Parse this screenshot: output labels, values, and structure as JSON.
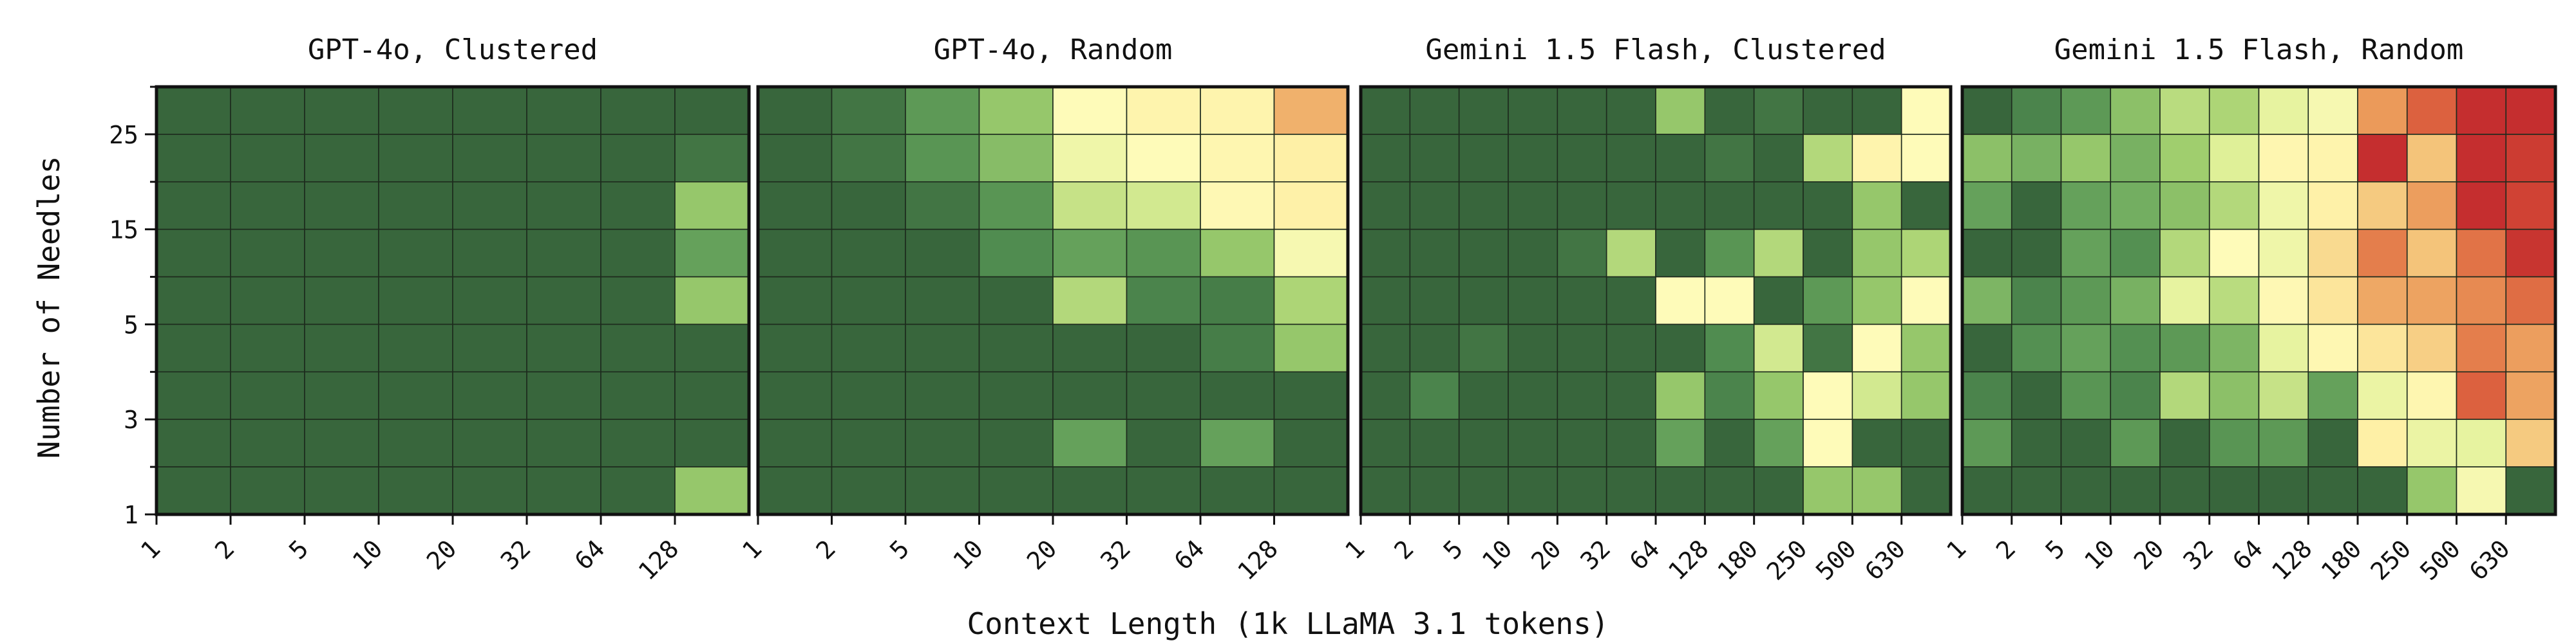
{
  "figure": {
    "xlabel": "Context Length (1k LLaMA 3.1 tokens)",
    "ylabel": "Number of Needles",
    "y_tick_labels": [
      "25",
      "15",
      "5",
      "3",
      "1"
    ]
  },
  "chart_data": [
    {
      "type": "heatmap",
      "title": "GPT-4o, Clustered",
      "x_tick_labels": [
        "1",
        "2",
        "5",
        "10",
        "20",
        "32",
        "64",
        "128"
      ],
      "value_range": [
        0,
        1
      ],
      "colormap": "RdYlGn",
      "values": [
        [
          1.0,
          1.0,
          1.0,
          1.0,
          1.0,
          1.0,
          1.0,
          1.0
        ],
        [
          1.0,
          1.0,
          1.0,
          1.0,
          1.0,
          1.0,
          1.0,
          0.98
        ],
        [
          1.0,
          1.0,
          1.0,
          1.0,
          1.0,
          1.0,
          1.0,
          0.8
        ],
        [
          1.0,
          1.0,
          1.0,
          1.0,
          1.0,
          1.0,
          1.0,
          0.9
        ],
        [
          1.0,
          1.0,
          1.0,
          1.0,
          1.0,
          1.0,
          1.0,
          0.8
        ],
        [
          1.0,
          1.0,
          1.0,
          1.0,
          1.0,
          1.0,
          1.0,
          1.0
        ],
        [
          1.0,
          1.0,
          1.0,
          1.0,
          1.0,
          1.0,
          1.0,
          1.0
        ],
        [
          1.0,
          1.0,
          1.0,
          1.0,
          1.0,
          1.0,
          1.0,
          1.0
        ],
        [
          1.0,
          1.0,
          1.0,
          1.0,
          1.0,
          1.0,
          1.0,
          0.8
        ]
      ]
    },
    {
      "type": "heatmap",
      "title": "GPT-4o, Random",
      "x_tick_labels": [
        "1",
        "2",
        "5",
        "10",
        "20",
        "32",
        "64",
        "128"
      ],
      "value_range": [
        0,
        1
      ],
      "colormap": "RdYlGn",
      "values": [
        [
          1.0,
          0.98,
          0.92,
          0.8,
          0.6,
          0.55,
          0.55,
          0.4
        ],
        [
          1.0,
          0.98,
          0.93,
          0.83,
          0.64,
          0.6,
          0.56,
          0.52
        ],
        [
          1.0,
          1.0,
          0.98,
          0.93,
          0.72,
          0.7,
          0.58,
          0.53
        ],
        [
          1.0,
          1.0,
          1.0,
          0.95,
          0.9,
          0.93,
          0.8,
          0.62
        ],
        [
          1.0,
          1.0,
          1.0,
          1.0,
          0.75,
          0.96,
          0.97,
          0.76
        ],
        [
          1.0,
          1.0,
          1.0,
          1.0,
          1.0,
          1.0,
          0.97,
          0.8
        ],
        [
          1.0,
          1.0,
          1.0,
          1.0,
          1.0,
          1.0,
          1.0,
          1.0
        ],
        [
          1.0,
          1.0,
          1.0,
          1.0,
          0.9,
          1.0,
          0.9,
          1.0
        ],
        [
          1.0,
          1.0,
          1.0,
          1.0,
          1.0,
          1.0,
          1.0,
          1.0
        ]
      ]
    },
    {
      "type": "heatmap",
      "title": "Gemini 1.5 Flash, Clustered",
      "x_tick_labels": [
        "1",
        "2",
        "5",
        "10",
        "20",
        "32",
        "64",
        "128",
        "180",
        "250",
        "500",
        "630"
      ],
      "value_range": [
        0,
        1
      ],
      "colormap": "RdYlGn",
      "values": [
        [
          1.0,
          1.0,
          1.0,
          1.0,
          1.0,
          1.0,
          0.8,
          1.0,
          0.98,
          1.0,
          1.0,
          0.6
        ],
        [
          1.0,
          1.0,
          1.0,
          1.0,
          1.0,
          1.0,
          1.0,
          0.98,
          1.0,
          0.75,
          0.55,
          0.6
        ],
        [
          1.0,
          1.0,
          1.0,
          1.0,
          1.0,
          1.0,
          1.0,
          1.0,
          1.0,
          1.0,
          0.8,
          1.0
        ],
        [
          1.0,
          1.0,
          1.0,
          1.0,
          0.98,
          0.75,
          1.0,
          0.93,
          0.75,
          1.0,
          0.8,
          0.76
        ],
        [
          1.0,
          1.0,
          1.0,
          1.0,
          1.0,
          1.0,
          0.6,
          0.6,
          1.0,
          0.92,
          0.8,
          0.6
        ],
        [
          1.0,
          1.0,
          0.98,
          1.0,
          1.0,
          1.0,
          1.0,
          0.95,
          0.7,
          0.98,
          0.6,
          0.8
        ],
        [
          1.0,
          0.96,
          1.0,
          1.0,
          1.0,
          1.0,
          0.8,
          0.96,
          0.8,
          0.6,
          0.7,
          0.8
        ],
        [
          1.0,
          1.0,
          1.0,
          1.0,
          1.0,
          1.0,
          0.9,
          1.0,
          0.9,
          0.6,
          1.0,
          1.0
        ],
        [
          1.0,
          1.0,
          1.0,
          1.0,
          1.0,
          1.0,
          1.0,
          1.0,
          1.0,
          0.8,
          0.8,
          1.0
        ]
      ]
    },
    {
      "type": "heatmap",
      "title": "Gemini 1.5 Flash, Random",
      "x_tick_labels": [
        "1",
        "2",
        "5",
        "10",
        "20",
        "32",
        "64",
        "128",
        "180",
        "250",
        "500",
        "630"
      ],
      "value_range": [
        0,
        1
      ],
      "colormap": "RdYlGn",
      "values": [
        [
          1.0,
          0.96,
          0.92,
          0.82,
          0.74,
          0.76,
          0.66,
          0.62,
          0.35,
          0.25,
          0.12,
          0.12
        ],
        [
          0.82,
          0.86,
          0.8,
          0.86,
          0.78,
          0.68,
          0.56,
          0.55,
          0.12,
          0.44,
          0.12,
          0.16
        ],
        [
          0.9,
          1.0,
          0.9,
          0.87,
          0.82,
          0.75,
          0.64,
          0.53,
          0.45,
          0.36,
          0.12,
          0.18
        ],
        [
          1.0,
          1.0,
          0.9,
          0.94,
          0.75,
          0.6,
          0.64,
          0.48,
          0.3,
          0.44,
          0.28,
          0.14
        ],
        [
          0.85,
          0.96,
          0.92,
          0.86,
          0.66,
          0.74,
          0.58,
          0.5,
          0.38,
          0.37,
          0.32,
          0.27
        ],
        [
          1.0,
          0.94,
          0.9,
          0.94,
          0.92,
          0.85,
          0.66,
          0.57,
          0.5,
          0.46,
          0.3,
          0.36
        ],
        [
          0.96,
          1.0,
          0.93,
          0.96,
          0.75,
          0.82,
          0.72,
          0.9,
          0.65,
          0.56,
          0.25,
          0.37
        ],
        [
          0.92,
          1.0,
          1.0,
          0.92,
          1.0,
          0.93,
          0.92,
          1.0,
          0.52,
          0.65,
          0.66,
          0.45
        ],
        [
          1.0,
          1.0,
          1.0,
          1.0,
          1.0,
          1.0,
          1.0,
          1.0,
          1.0,
          0.8,
          0.62,
          1.0
        ]
      ]
    }
  ]
}
